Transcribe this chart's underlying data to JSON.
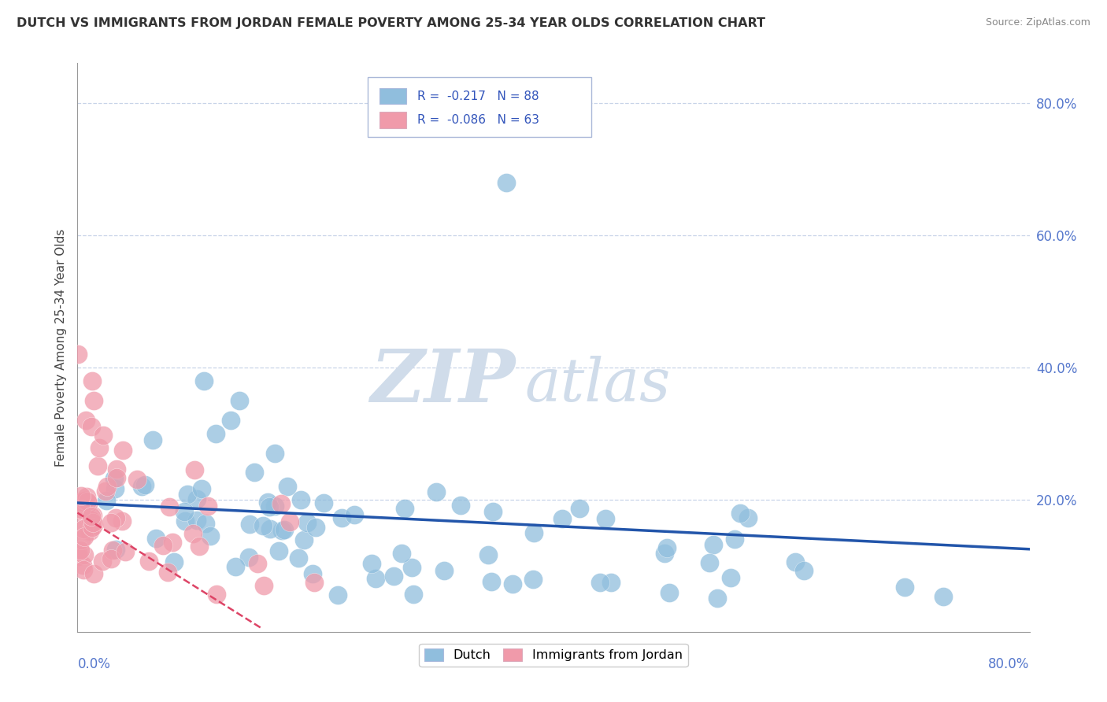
{
  "title": "DUTCH VS IMMIGRANTS FROM JORDAN FEMALE POVERTY AMONG 25-34 YEAR OLDS CORRELATION CHART",
  "source": "Source: ZipAtlas.com",
  "ylabel": "Female Poverty Among 25-34 Year Olds",
  "right_yticks": [
    "80.0%",
    "60.0%",
    "40.0%",
    "20.0%"
  ],
  "right_ytick_vals": [
    0.8,
    0.6,
    0.4,
    0.2
  ],
  "legend_entries": [
    {
      "label": "Dutch",
      "R": -0.217,
      "N": 88,
      "color": "#a8c8e8"
    },
    {
      "label": "Immigrants from Jordan",
      "R": -0.086,
      "N": 63,
      "color": "#f4a0b0"
    }
  ],
  "dutch_color": "#90bedd",
  "jordan_color": "#f09aaa",
  "dutch_line_color": "#2255aa",
  "jordan_line_color": "#dd4466",
  "background_color": "#ffffff",
  "grid_color": "#c8d4e8",
  "watermark_color": "#d0dcea",
  "xmin": 0.0,
  "xmax": 0.8,
  "ymin": 0.0,
  "ymax": 0.86,
  "grid_levels": [
    0.2,
    0.4,
    0.6,
    0.8
  ],
  "dutch_line_x0": 0.0,
  "dutch_line_x1": 0.8,
  "dutch_line_y0": 0.195,
  "dutch_line_y1": 0.125,
  "jordan_line_x0": 0.0,
  "jordan_line_x1": 0.155,
  "jordan_line_y0": 0.18,
  "jordan_line_y1": 0.005
}
